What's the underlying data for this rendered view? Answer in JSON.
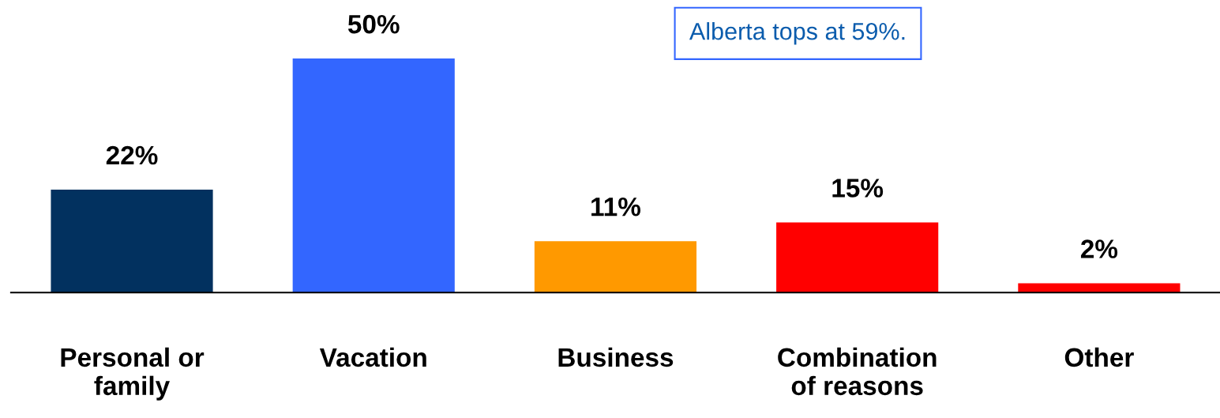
{
  "chart_data": {
    "type": "bar",
    "categories": [
      "Personal or\nfamily",
      "Vacation",
      "Business",
      "Combination\nof reasons",
      "Other"
    ],
    "values": [
      22,
      50,
      11,
      15,
      2
    ],
    "colors": [
      "#02315f",
      "#3366ff",
      "#ff9900",
      "#ff0000",
      "#ff0000"
    ],
    "value_labels": [
      "22%",
      "50%",
      "11%",
      "15%",
      "2%"
    ],
    "annotations": [
      "Alberta tops at 59%."
    ],
    "grid": false,
    "legend": false
  }
}
